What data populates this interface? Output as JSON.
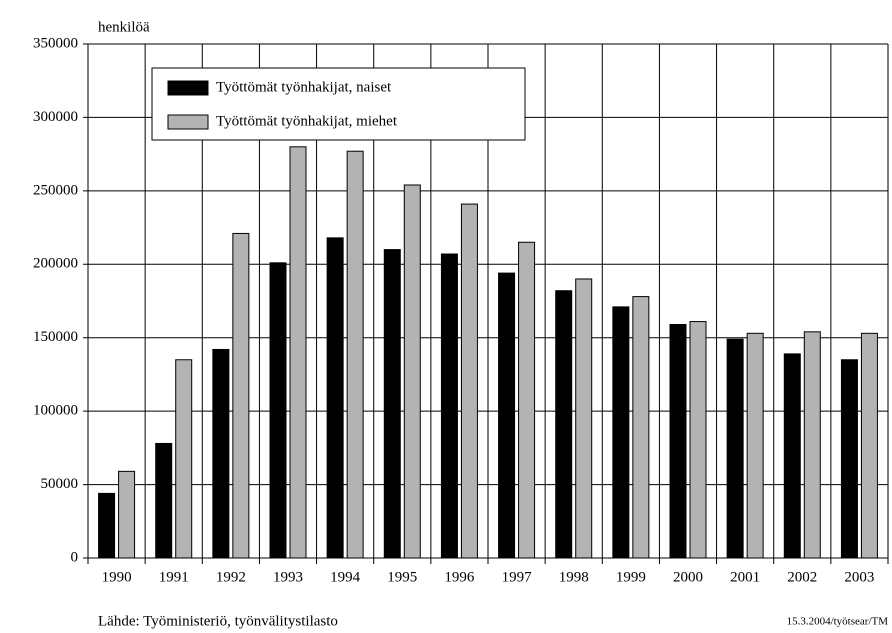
{
  "chart_data": {
    "type": "bar",
    "y_label": "henkilöä",
    "categories": [
      "1990",
      "1991",
      "1992",
      "1993",
      "1994",
      "1995",
      "1996",
      "1997",
      "1998",
      "1999",
      "2000",
      "2001",
      "2002",
      "2003"
    ],
    "series": [
      {
        "name": "Työttömät työnhakijat, naiset",
        "color": "#000000",
        "values": [
          44000,
          78000,
          142000,
          201000,
          218000,
          210000,
          207000,
          194000,
          182000,
          171000,
          159000,
          149000,
          139000,
          135000
        ]
      },
      {
        "name": "Työttömät työnhakijat, miehet",
        "color": "#b3b3b3",
        "values": [
          59000,
          135000,
          221000,
          280000,
          277000,
          254000,
          241000,
          215000,
          190000,
          178000,
          161000,
          153000,
          154000,
          153000
        ]
      }
    ],
    "ylim": [
      0,
      350000
    ],
    "yticks": [
      0,
      50000,
      100000,
      150000,
      200000,
      250000,
      300000,
      350000
    ],
    "grid": true,
    "source": "Lähde: Työministeriö, työnvälitystilasto",
    "note": "15.3.2004/työtsear/TM"
  }
}
